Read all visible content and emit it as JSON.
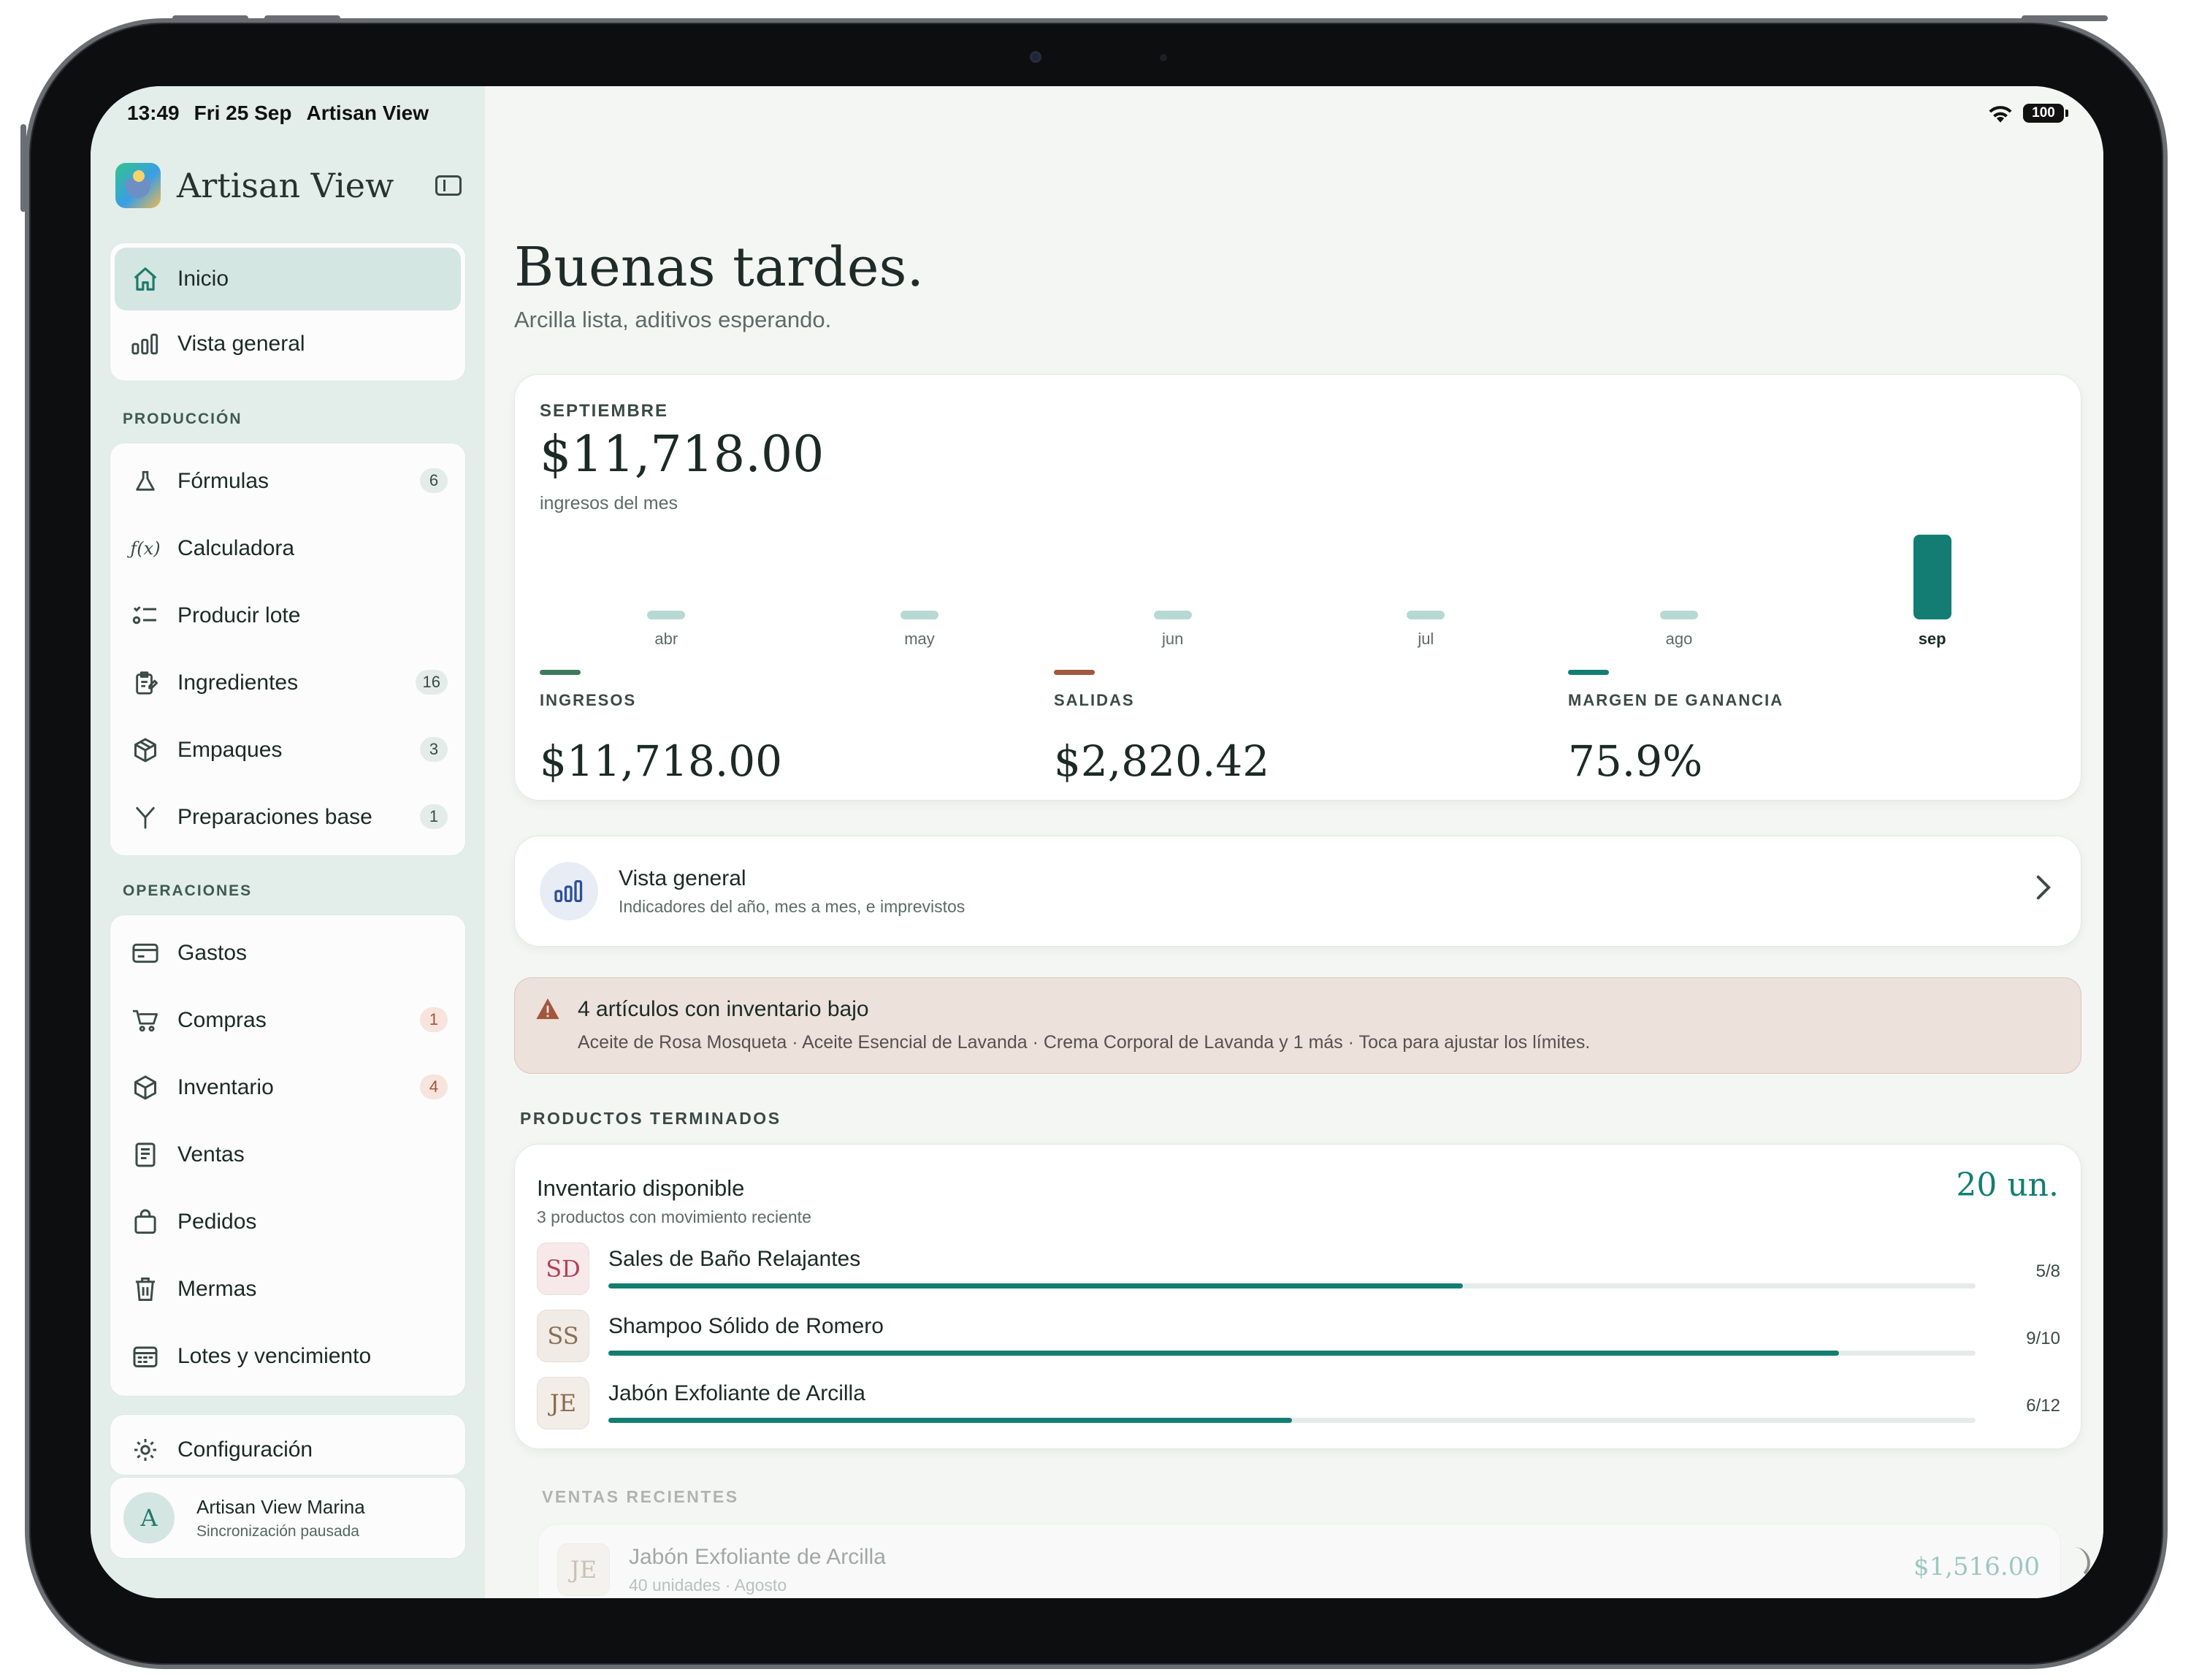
{
  "status": {
    "time": "13:49",
    "date": "Fri 25 Sep",
    "app": "Artisan View",
    "battery": "100"
  },
  "sidebar": {
    "app_title": "Artisan View",
    "main_items": [
      {
        "label": "Inicio",
        "icon": "home-icon"
      },
      {
        "label": "Vista general",
        "icon": "bar-chart-icon"
      }
    ],
    "produccion_label": "PRODUCCIÓN",
    "produccion_items": [
      {
        "label": "Fórmulas",
        "icon": "flask-icon",
        "badge": "6"
      },
      {
        "label": "Calculadora",
        "icon": "function-icon"
      },
      {
        "label": "Producir lote",
        "icon": "checklist-icon"
      },
      {
        "label": "Ingredientes",
        "icon": "clipboard-edit-icon",
        "badge": "16"
      },
      {
        "label": "Empaques",
        "icon": "box-icon",
        "badge": "3"
      },
      {
        "label": "Preparaciones base",
        "icon": "merge-icon",
        "badge": "1"
      }
    ],
    "operaciones_label": "OPERACIONES",
    "operaciones_items": [
      {
        "label": "Gastos",
        "icon": "card-icon"
      },
      {
        "label": "Compras",
        "icon": "cart-icon",
        "badge": "1"
      },
      {
        "label": "Inventario",
        "icon": "box-icon",
        "badge": "4"
      },
      {
        "label": "Ventas",
        "icon": "receipt-icon"
      },
      {
        "label": "Pedidos",
        "icon": "bag-icon"
      },
      {
        "label": "Mermas",
        "icon": "trash-icon"
      },
      {
        "label": "Lotes y vencimiento",
        "icon": "calendar-icon"
      }
    ],
    "settings_label": "Configuración",
    "user": {
      "initial": "A",
      "name": "Artisan View Marina",
      "status": "Sincronización pausada"
    }
  },
  "main": {
    "greeting": "Buenas tardes.",
    "subtitle": "Arcilla lista, aditivos esperando.",
    "month_card": {
      "eyebrow": "SEPTIEMBRE",
      "amount": "$11,718.00",
      "caption": "ingresos del mes",
      "metrics": [
        {
          "label": "INGRESOS",
          "value": "$11,718.00",
          "color": "#3d7a5a"
        },
        {
          "label": "SALIDAS",
          "value": "$2,820.42",
          "color": "#a0583e"
        },
        {
          "label": "MARGEN DE GANANCIA",
          "value": "75.9%",
          "color": "#137d73"
        }
      ]
    },
    "overview_card": {
      "title": "Vista general",
      "subtitle": "Indicadores del año, mes a mes, e imprevistos"
    },
    "alert": {
      "title": "4 artículos con inventario bajo",
      "detail": "Aceite de Rosa Mosqueta · Aceite Esencial de Lavanda · Crema Corporal de Lavanda y 1 más · Toca para ajustar los límites."
    },
    "finished_label": "PRODUCTOS TERMINADOS",
    "inventory_card": {
      "title": "Inventario disponible",
      "subtitle": "3 productos con movimiento reciente",
      "total": "20 un.",
      "products": [
        {
          "initials": "SD",
          "name": "Sales de Baño Relajantes",
          "count": "5/8",
          "ratio": 0.625,
          "tile_bg": "#f7e9ea",
          "tile_fg": "#b44155"
        },
        {
          "initials": "SS",
          "name": "Shampoo Sólido de Romero",
          "count": "9/10",
          "ratio": 0.9,
          "tile_bg": "#f1ebe6",
          "tile_fg": "#8a6f55"
        },
        {
          "initials": "JE",
          "name": "Jabón Exfoliante de Arcilla",
          "count": "6/12",
          "ratio": 0.5,
          "tile_bg": "#f3ede7",
          "tile_fg": "#8a6a4c"
        }
      ]
    },
    "recent_label": "VENTAS RECIENTES",
    "recent_sale": {
      "initials": "JE",
      "name": "Jabón Exfoliante de Arcilla",
      "detail": "40 unidades · Agosto",
      "amount": "$1,516.00"
    }
  },
  "chart_data": {
    "type": "bar",
    "categories": [
      "abr",
      "may",
      "jun",
      "jul",
      "ago",
      "sep"
    ],
    "values": [
      0,
      0,
      0,
      0,
      1200,
      11718
    ],
    "highlight": "sep",
    "colors": {
      "default": "#b7d9d4",
      "highlight": "#137d73"
    }
  }
}
